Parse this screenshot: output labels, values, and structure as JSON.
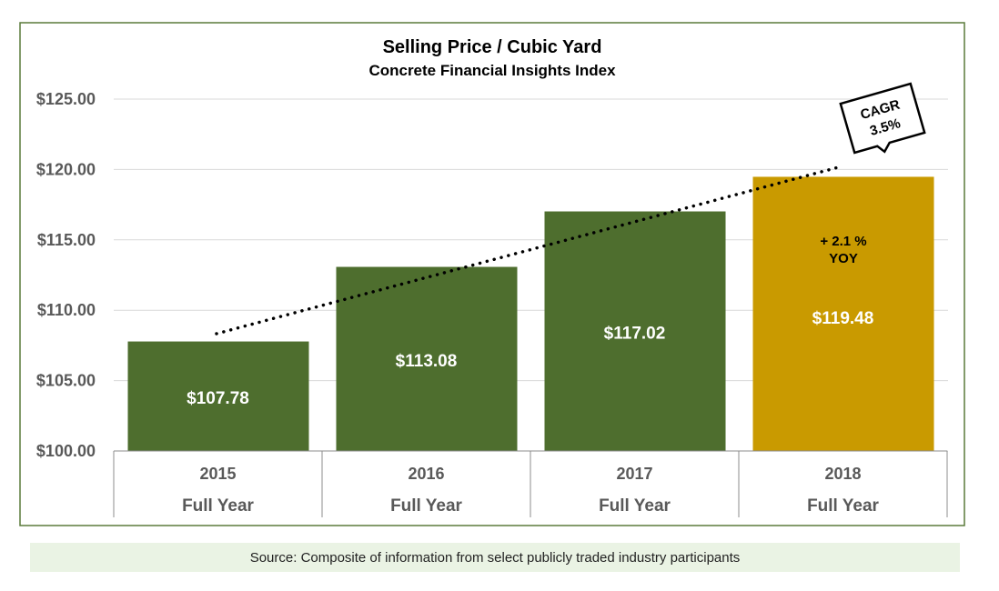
{
  "chart_data": {
    "type": "bar",
    "title": "Selling Price / Cubic Yard",
    "subtitle": "Concrete Financial Insights Index",
    "categories": [
      "2015",
      "2016",
      "2017",
      "2018"
    ],
    "category_sublabel": "Full Year",
    "values": [
      107.78,
      113.08,
      117.02,
      119.48
    ],
    "data_labels": [
      "$107.78",
      "$113.08",
      "$117.02",
      "$119.48"
    ],
    "bar_colors": [
      "#4e6e2e",
      "#4e6e2e",
      "#4e6e2e",
      "#c99a00"
    ],
    "ylim": [
      100,
      125
    ],
    "yticks": [
      100,
      105,
      110,
      115,
      120,
      125
    ],
    "ytick_labels": [
      "$100.00",
      "$105.00",
      "$110.00",
      "$115.00",
      "$120.00",
      "$125.00"
    ],
    "grid": true,
    "trendline": {
      "style": "dotted",
      "color": "#000000"
    },
    "annotations": {
      "cagr_label": "CAGR",
      "cagr_value": "3.5%",
      "yoy_change": "+ 2.1 %",
      "yoy_label": "YOY"
    },
    "xlabel": "",
    "ylabel": ""
  },
  "source": "Source: Composite of information from select publicly traded industry participants",
  "colors": {
    "frame": "#5a7a3a",
    "grid": "#d9d9d9",
    "axis_text": "#595959"
  }
}
